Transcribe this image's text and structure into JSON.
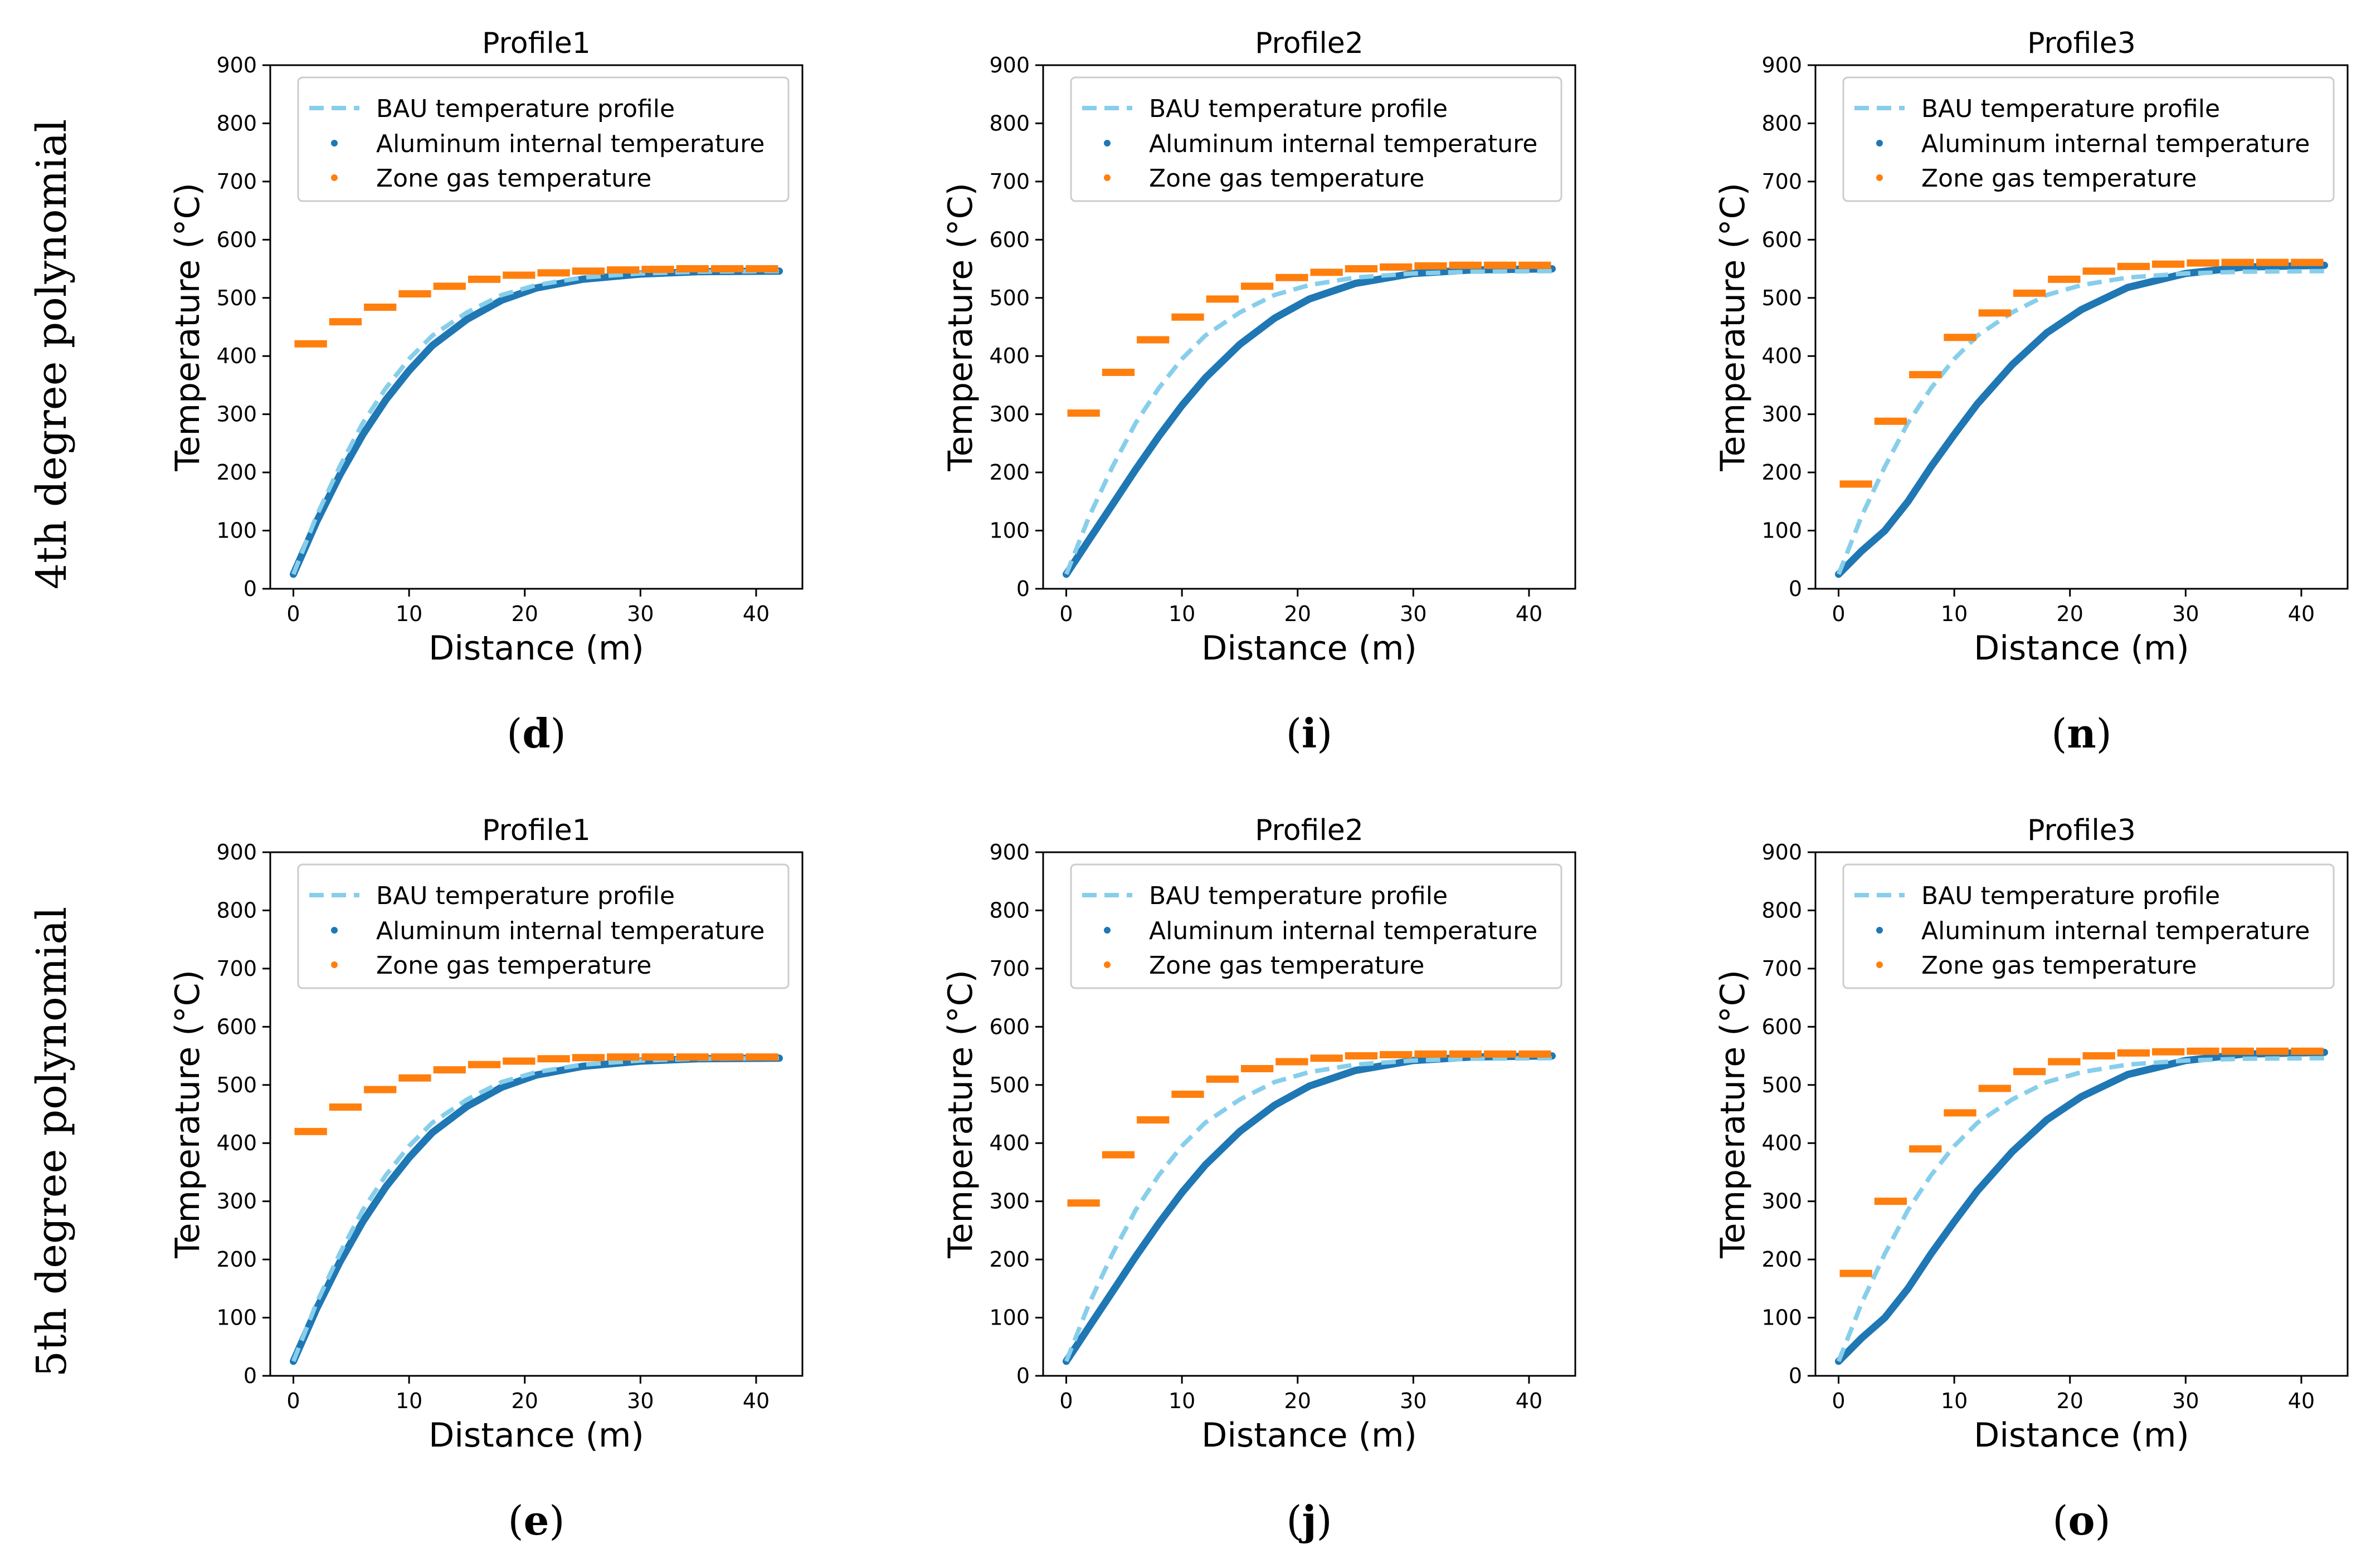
{
  "row_labels": [
    "4th degree polynomial",
    "5th degree polynomial"
  ],
  "colors": {
    "bau": "#87CEEB",
    "aluminum": "#1f77b4",
    "zone_gas": "#ff7f0e",
    "legend_border": "#cccccc",
    "axes": "#000000"
  },
  "chart_data": [
    {
      "type": "line",
      "title": "Profile1",
      "xlabel": "Distance (m)",
      "ylabel": "Temperature (°C)",
      "xlim": [
        -2,
        44
      ],
      "ylim": [
        0,
        900
      ],
      "xticks": [
        "0",
        "10",
        "20",
        "30",
        "40"
      ],
      "yticks": [
        "0",
        "100",
        "200",
        "300",
        "400",
        "500",
        "600",
        "700",
        "800",
        "900"
      ],
      "legend": [
        "BAU temperature profile",
        "Aluminum internal temperature",
        "Zone gas temperature"
      ],
      "legend_position": "top-left",
      "panel_label": "d",
      "bau": {
        "x": [
          0,
          1,
          2,
          4,
          6,
          8,
          10,
          12,
          15,
          18,
          21,
          25,
          30,
          35,
          42
        ],
        "y": [
          25,
          75,
          125,
          210,
          285,
          345,
          395,
          435,
          475,
          505,
          522,
          535,
          542,
          545,
          546
        ]
      },
      "aluminum": {
        "x": [
          0,
          1,
          2,
          4,
          6,
          8,
          10,
          12,
          15,
          18,
          21,
          25,
          30,
          35,
          42
        ],
        "y": [
          25,
          70,
          115,
          195,
          265,
          325,
          375,
          418,
          463,
          496,
          517,
          532,
          541,
          545,
          546
        ]
      },
      "zone_gas": {
        "segments": [
          [
            0,
            3,
            421
          ],
          [
            3,
            6,
            459
          ],
          [
            6,
            9,
            484
          ],
          [
            9,
            12,
            507
          ],
          [
            12,
            15,
            520
          ],
          [
            15,
            18,
            532
          ],
          [
            18,
            21,
            539
          ],
          [
            21,
            24,
            543
          ],
          [
            24,
            27,
            546
          ],
          [
            27,
            30,
            548
          ],
          [
            30,
            33,
            549
          ],
          [
            33,
            36,
            550
          ],
          [
            36,
            39,
            550
          ],
          [
            39,
            42,
            550
          ]
        ]
      }
    },
    {
      "type": "line",
      "title": "Profile2",
      "xlabel": "Distance (m)",
      "ylabel": "Temperature (°C)",
      "xlim": [
        -2,
        44
      ],
      "ylim": [
        0,
        900
      ],
      "xticks": [
        "0",
        "10",
        "20",
        "30",
        "40"
      ],
      "yticks": [
        "0",
        "100",
        "200",
        "300",
        "400",
        "500",
        "600",
        "700",
        "800",
        "900"
      ],
      "legend": [
        "BAU temperature profile",
        "Aluminum internal temperature",
        "Zone gas temperature"
      ],
      "legend_position": "top-left",
      "panel_label": "i",
      "bau": {
        "x": [
          0,
          1,
          2,
          4,
          6,
          8,
          10,
          12,
          15,
          18,
          21,
          25,
          30,
          35,
          42
        ],
        "y": [
          25,
          75,
          125,
          210,
          285,
          345,
          395,
          435,
          475,
          505,
          522,
          535,
          542,
          545,
          546
        ]
      },
      "aluminum": {
        "x": [
          0,
          1,
          2,
          4,
          6,
          8,
          10,
          12,
          15,
          18,
          21,
          25,
          30,
          35,
          42
        ],
        "y": [
          25,
          55,
          85,
          145,
          205,
          262,
          315,
          362,
          420,
          465,
          498,
          525,
          542,
          548,
          550
        ]
      },
      "zone_gas": {
        "segments": [
          [
            0,
            3,
            302
          ],
          [
            3,
            6,
            372
          ],
          [
            6,
            9,
            428
          ],
          [
            9,
            12,
            467
          ],
          [
            12,
            15,
            498
          ],
          [
            15,
            18,
            520
          ],
          [
            18,
            21,
            535
          ],
          [
            21,
            24,
            544
          ],
          [
            24,
            27,
            550
          ],
          [
            27,
            30,
            553
          ],
          [
            30,
            33,
            555
          ],
          [
            33,
            36,
            556
          ],
          [
            36,
            39,
            556
          ],
          [
            39,
            42,
            556
          ]
        ]
      }
    },
    {
      "type": "line",
      "title": "Profile3",
      "xlabel": "Distance (m)",
      "ylabel": "Temperature (°C)",
      "xlim": [
        -2,
        44
      ],
      "ylim": [
        0,
        900
      ],
      "xticks": [
        "0",
        "10",
        "20",
        "30",
        "40"
      ],
      "yticks": [
        "0",
        "100",
        "200",
        "300",
        "400",
        "500",
        "600",
        "700",
        "800",
        "900"
      ],
      "legend": [
        "BAU temperature profile",
        "Aluminum internal temperature",
        "Zone gas temperature"
      ],
      "legend_position": "top-left",
      "panel_label": "n",
      "bau": {
        "x": [
          0,
          1,
          2,
          4,
          6,
          8,
          10,
          12,
          15,
          18,
          21,
          25,
          30,
          35,
          42
        ],
        "y": [
          25,
          75,
          125,
          210,
          285,
          345,
          395,
          435,
          475,
          505,
          522,
          535,
          542,
          545,
          546
        ]
      },
      "aluminum": {
        "x": [
          0,
          1,
          2,
          4,
          6,
          8,
          10,
          12,
          15,
          18,
          21,
          25,
          30,
          35,
          42
        ],
        "y": [
          25,
          45,
          65,
          100,
          150,
          210,
          265,
          318,
          385,
          440,
          480,
          518,
          542,
          553,
          556
        ]
      },
      "zone_gas": {
        "segments": [
          [
            0,
            3,
            180
          ],
          [
            3,
            6,
            288
          ],
          [
            6,
            9,
            368
          ],
          [
            9,
            12,
            432
          ],
          [
            12,
            15,
            474
          ],
          [
            15,
            18,
            508
          ],
          [
            18,
            21,
            532
          ],
          [
            21,
            24,
            546
          ],
          [
            24,
            27,
            554
          ],
          [
            27,
            30,
            558
          ],
          [
            30,
            33,
            560
          ],
          [
            33,
            36,
            561
          ],
          [
            36,
            39,
            561
          ],
          [
            39,
            42,
            561
          ]
        ]
      }
    },
    {
      "type": "line",
      "title": "Profile1",
      "xlabel": "Distance (m)",
      "ylabel": "Temperature (°C)",
      "xlim": [
        -2,
        44
      ],
      "ylim": [
        0,
        900
      ],
      "xticks": [
        "0",
        "10",
        "20",
        "30",
        "40"
      ],
      "yticks": [
        "0",
        "100",
        "200",
        "300",
        "400",
        "500",
        "600",
        "700",
        "800",
        "900"
      ],
      "legend": [
        "BAU temperature profile",
        "Aluminum internal temperature",
        "Zone gas temperature"
      ],
      "legend_position": "top-left",
      "panel_label": "e",
      "bau": {
        "x": [
          0,
          1,
          2,
          4,
          6,
          8,
          10,
          12,
          15,
          18,
          21,
          25,
          30,
          35,
          42
        ],
        "y": [
          25,
          75,
          125,
          210,
          285,
          345,
          395,
          435,
          475,
          505,
          522,
          535,
          542,
          545,
          546
        ]
      },
      "aluminum": {
        "x": [
          0,
          1,
          2,
          4,
          6,
          8,
          10,
          12,
          15,
          18,
          21,
          25,
          30,
          35,
          42
        ],
        "y": [
          25,
          70,
          115,
          195,
          265,
          325,
          375,
          418,
          463,
          496,
          517,
          532,
          541,
          545,
          546
        ]
      },
      "zone_gas": {
        "segments": [
          [
            0,
            3,
            420
          ],
          [
            3,
            6,
            462
          ],
          [
            6,
            9,
            492
          ],
          [
            9,
            12,
            512
          ],
          [
            12,
            15,
            526
          ],
          [
            15,
            18,
            535
          ],
          [
            18,
            21,
            541
          ],
          [
            21,
            24,
            545
          ],
          [
            24,
            27,
            547
          ],
          [
            27,
            30,
            548
          ],
          [
            30,
            33,
            548
          ],
          [
            33,
            36,
            548
          ],
          [
            36,
            39,
            548
          ],
          [
            39,
            42,
            548
          ]
        ]
      }
    },
    {
      "type": "line",
      "title": "Profile2",
      "xlabel": "Distance (m)",
      "ylabel": "Temperature (°C)",
      "xlim": [
        -2,
        44
      ],
      "ylim": [
        0,
        900
      ],
      "xticks": [
        "0",
        "10",
        "20",
        "30",
        "40"
      ],
      "yticks": [
        "0",
        "100",
        "200",
        "300",
        "400",
        "500",
        "600",
        "700",
        "800",
        "900"
      ],
      "legend": [
        "BAU temperature profile",
        "Aluminum internal temperature",
        "Zone gas temperature"
      ],
      "legend_position": "top-left",
      "panel_label": "j",
      "bau": {
        "x": [
          0,
          1,
          2,
          4,
          6,
          8,
          10,
          12,
          15,
          18,
          21,
          25,
          30,
          35,
          42
        ],
        "y": [
          25,
          75,
          125,
          210,
          285,
          345,
          395,
          435,
          475,
          505,
          522,
          535,
          542,
          545,
          546
        ]
      },
      "aluminum": {
        "x": [
          0,
          1,
          2,
          4,
          6,
          8,
          10,
          12,
          15,
          18,
          21,
          25,
          30,
          35,
          42
        ],
        "y": [
          25,
          55,
          85,
          145,
          205,
          262,
          315,
          362,
          420,
          465,
          498,
          525,
          542,
          548,
          550
        ]
      },
      "zone_gas": {
        "segments": [
          [
            0,
            3,
            297
          ],
          [
            3,
            6,
            380
          ],
          [
            6,
            9,
            440
          ],
          [
            9,
            12,
            484
          ],
          [
            12,
            15,
            510
          ],
          [
            15,
            18,
            528
          ],
          [
            18,
            21,
            540
          ],
          [
            21,
            24,
            546
          ],
          [
            24,
            27,
            550
          ],
          [
            27,
            30,
            552
          ],
          [
            30,
            33,
            553
          ],
          [
            33,
            36,
            553
          ],
          [
            36,
            39,
            553
          ],
          [
            39,
            42,
            553
          ]
        ]
      }
    },
    {
      "type": "line",
      "title": "Profile3",
      "xlabel": "Distance (m)",
      "ylabel": "Temperature (°C)",
      "xlim": [
        -2,
        44
      ],
      "ylim": [
        0,
        900
      ],
      "xticks": [
        "0",
        "10",
        "20",
        "30",
        "40"
      ],
      "yticks": [
        "0",
        "100",
        "200",
        "300",
        "400",
        "500",
        "600",
        "700",
        "800",
        "900"
      ],
      "legend": [
        "BAU temperature profile",
        "Aluminum internal temperature",
        "Zone gas temperature"
      ],
      "legend_position": "top-left",
      "panel_label": "o",
      "bau": {
        "x": [
          0,
          1,
          2,
          4,
          6,
          8,
          10,
          12,
          15,
          18,
          21,
          25,
          30,
          35,
          42
        ],
        "y": [
          25,
          75,
          125,
          210,
          285,
          345,
          395,
          435,
          475,
          505,
          522,
          535,
          542,
          545,
          546
        ]
      },
      "aluminum": {
        "x": [
          0,
          1,
          2,
          4,
          6,
          8,
          10,
          12,
          15,
          18,
          21,
          25,
          30,
          35,
          42
        ],
        "y": [
          25,
          45,
          65,
          100,
          150,
          210,
          265,
          318,
          385,
          440,
          480,
          518,
          542,
          553,
          556
        ]
      },
      "zone_gas": {
        "segments": [
          [
            0,
            3,
            176
          ],
          [
            3,
            6,
            300
          ],
          [
            6,
            9,
            390
          ],
          [
            9,
            12,
            452
          ],
          [
            12,
            15,
            494
          ],
          [
            15,
            18,
            523
          ],
          [
            18,
            21,
            540
          ],
          [
            21,
            24,
            550
          ],
          [
            24,
            27,
            555
          ],
          [
            27,
            30,
            557
          ],
          [
            30,
            33,
            558
          ],
          [
            33,
            36,
            558
          ],
          [
            36,
            39,
            558
          ],
          [
            39,
            42,
            558
          ]
        ]
      }
    }
  ]
}
